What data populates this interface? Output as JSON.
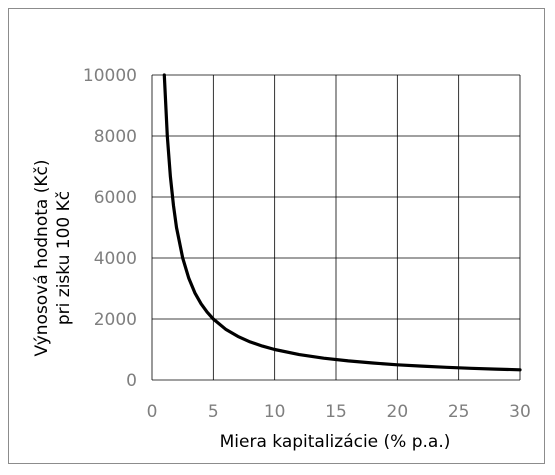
{
  "chart_data": {
    "type": "line",
    "title": "",
    "xlabel": "Miera kapitalizácie (% p.a.)",
    "ylabel_lines": [
      "Výnosová hodnota (Kč)",
      "pri zisku 100 Kč"
    ],
    "xlim": [
      0,
      30
    ],
    "ylim": [
      0,
      10000
    ],
    "x_ticks": [
      "0",
      "5",
      "10",
      "15",
      "20",
      "25",
      "30"
    ],
    "y_ticks": [
      "0",
      "2000",
      "4000",
      "6000",
      "8000",
      "10000"
    ],
    "grid": true,
    "series": [
      {
        "color": "#000000",
        "x": [
          1,
          1.25,
          1.5,
          1.75,
          2,
          2.5,
          3,
          3.5,
          4,
          4.5,
          5,
          6,
          7,
          8,
          9,
          10,
          12,
          14,
          16,
          18,
          20,
          22,
          24,
          26,
          28,
          30
        ],
        "y": [
          10000,
          8000,
          6667,
          5714,
          5000,
          4000,
          3333,
          2857,
          2500,
          2222,
          2000,
          1667,
          1429,
          1250,
          1111,
          1000,
          833,
          714,
          625,
          556,
          500,
          455,
          417,
          385,
          357,
          333
        ]
      }
    ]
  }
}
